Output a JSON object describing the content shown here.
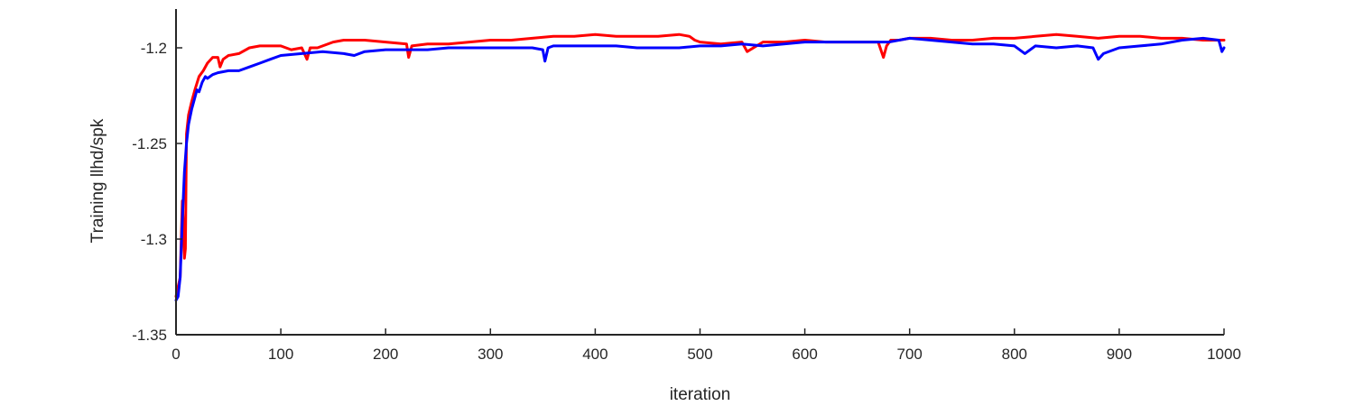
{
  "chart_data": {
    "type": "line",
    "title": "",
    "xlabel": "iteration",
    "ylabel": "Training llhd/spk",
    "xlim": [
      0,
      1000
    ],
    "ylim": [
      -1.35,
      -1.19
    ],
    "xticks": [
      0,
      100,
      200,
      300,
      400,
      500,
      600,
      700,
      800,
      900,
      1000
    ],
    "xtick_labels": [
      "0",
      "100",
      "200",
      "300",
      "400",
      "500",
      "600",
      "700",
      "800",
      "900",
      "1000"
    ],
    "yticks": [
      -1.35,
      -1.3,
      -1.25,
      -1.2
    ],
    "ytick_labels": [
      "-1.35",
      "-1.3",
      "-1.25",
      "-1.2"
    ],
    "grid": false,
    "legend": "none",
    "series": [
      {
        "color": "#ff0000",
        "x": [
          0,
          2,
          4,
          6,
          8,
          9,
          10,
          12,
          15,
          18,
          22,
          26,
          30,
          35,
          40,
          42,
          45,
          50,
          60,
          70,
          80,
          100,
          110,
          120,
          125,
          128,
          135,
          150,
          160,
          180,
          200,
          220,
          222,
          225,
          240,
          260,
          280,
          300,
          320,
          340,
          360,
          380,
          400,
          420,
          440,
          460,
          480,
          490,
          495,
          500,
          520,
          540,
          545,
          560,
          580,
          600,
          620,
          640,
          660,
          670,
          675,
          678,
          682,
          690,
          700,
          720,
          740,
          760,
          780,
          800,
          820,
          840,
          860,
          880,
          900,
          920,
          940,
          960,
          980,
          1000
        ],
        "y": [
          -1.33,
          -1.325,
          -1.32,
          -1.28,
          -1.31,
          -1.305,
          -1.245,
          -1.235,
          -1.228,
          -1.222,
          -1.215,
          -1.212,
          -1.208,
          -1.205,
          -1.205,
          -1.21,
          -1.206,
          -1.204,
          -1.203,
          -1.2,
          -1.199,
          -1.199,
          -1.201,
          -1.2,
          -1.206,
          -1.2,
          -1.2,
          -1.197,
          -1.196,
          -1.196,
          -1.197,
          -1.198,
          -1.205,
          -1.199,
          -1.198,
          -1.198,
          -1.197,
          -1.196,
          -1.196,
          -1.195,
          -1.194,
          -1.194,
          -1.193,
          -1.194,
          -1.194,
          -1.194,
          -1.193,
          -1.194,
          -1.196,
          -1.197,
          -1.198,
          -1.197,
          -1.202,
          -1.197,
          -1.197,
          -1.196,
          -1.197,
          -1.197,
          -1.197,
          -1.197,
          -1.205,
          -1.199,
          -1.196,
          -1.196,
          -1.195,
          -1.195,
          -1.196,
          -1.196,
          -1.195,
          -1.195,
          -1.194,
          -1.193,
          -1.194,
          -1.195,
          -1.194,
          -1.194,
          -1.195,
          -1.195,
          -1.196,
          -1.196
        ]
      },
      {
        "color": "#0000ff",
        "x": [
          0,
          2,
          4,
          6,
          8,
          10,
          12,
          15,
          18,
          20,
          22,
          25,
          28,
          30,
          35,
          40,
          50,
          60,
          70,
          80,
          90,
          100,
          120,
          140,
          160,
          170,
          180,
          200,
          220,
          240,
          260,
          280,
          300,
          320,
          340,
          350,
          352,
          355,
          360,
          380,
          400,
          420,
          440,
          460,
          480,
          500,
          520,
          540,
          560,
          580,
          600,
          620,
          640,
          660,
          680,
          700,
          720,
          740,
          760,
          780,
          800,
          810,
          820,
          840,
          860,
          875,
          880,
          885,
          900,
          920,
          940,
          960,
          980,
          995,
          998,
          1000
        ],
        "y": [
          -1.332,
          -1.33,
          -1.32,
          -1.29,
          -1.265,
          -1.25,
          -1.24,
          -1.232,
          -1.226,
          -1.222,
          -1.223,
          -1.218,
          -1.215,
          -1.216,
          -1.214,
          -1.213,
          -1.212,
          -1.212,
          -1.21,
          -1.208,
          -1.206,
          -1.204,
          -1.203,
          -1.202,
          -1.203,
          -1.204,
          -1.202,
          -1.201,
          -1.201,
          -1.201,
          -1.2,
          -1.2,
          -1.2,
          -1.2,
          -1.2,
          -1.201,
          -1.207,
          -1.2,
          -1.199,
          -1.199,
          -1.199,
          -1.199,
          -1.2,
          -1.2,
          -1.2,
          -1.199,
          -1.199,
          -1.198,
          -1.199,
          -1.198,
          -1.197,
          -1.197,
          -1.197,
          -1.197,
          -1.197,
          -1.195,
          -1.196,
          -1.197,
          -1.198,
          -1.198,
          -1.199,
          -1.203,
          -1.199,
          -1.2,
          -1.199,
          -1.2,
          -1.206,
          -1.203,
          -1.2,
          -1.199,
          -1.198,
          -1.196,
          -1.195,
          -1.196,
          -1.202,
          -1.2
        ]
      }
    ]
  }
}
